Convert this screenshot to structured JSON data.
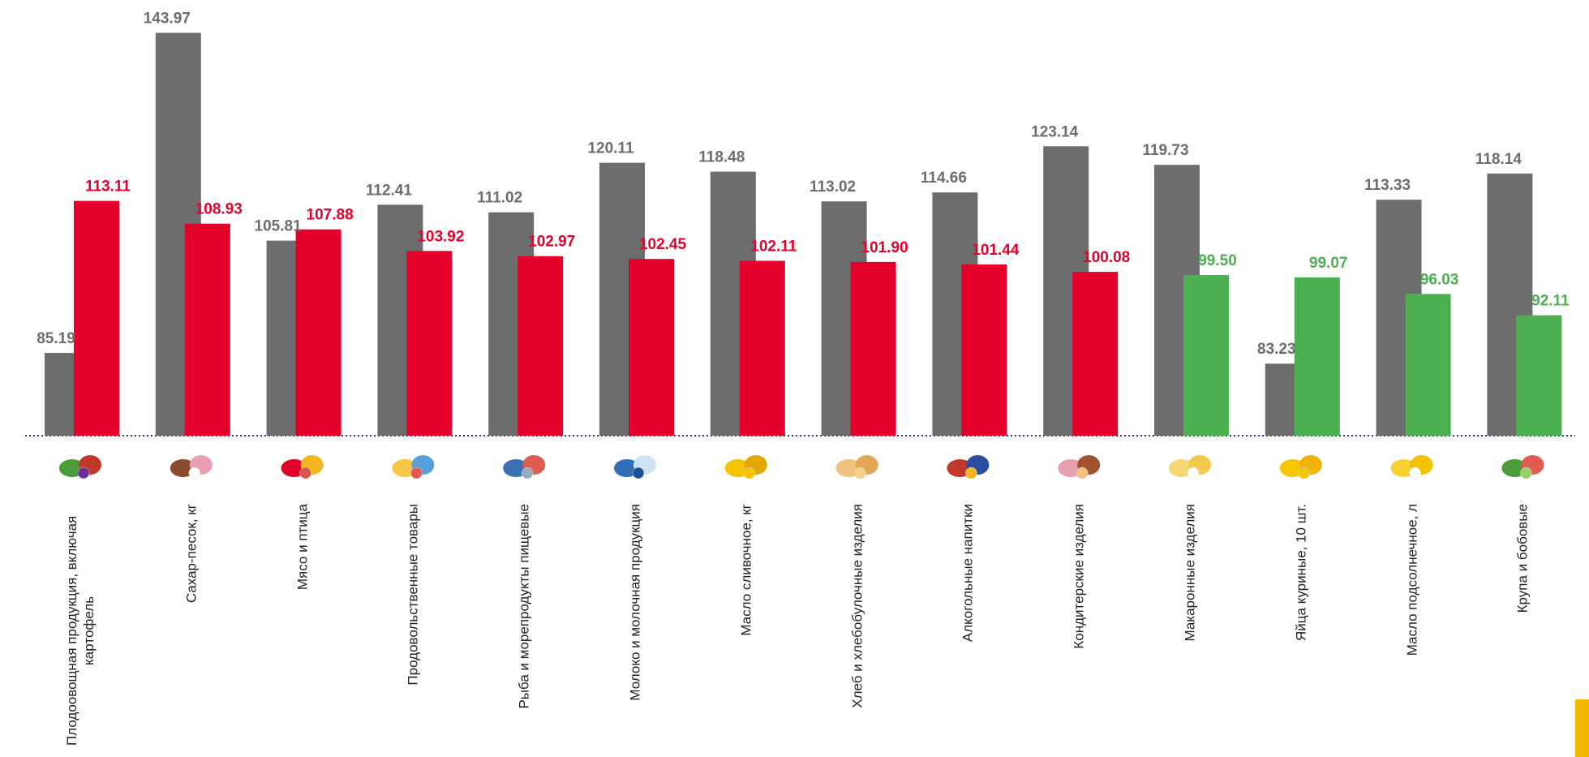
{
  "chart_data": {
    "type": "bar",
    "categories": [
      "Плодоовощная продукция, включая картофель",
      "Сахар-песок, кг",
      "Мясо и птица",
      "Продовольственные товары",
      "Рыба и морепродукты пищевые",
      "Молоко и молочная продукция",
      "Масло сливочное, кг",
      "Хлеб и хлебобулочные изделия",
      "Алкогольные напитки",
      "Кондитерские изделия",
      "Макаронные изделия",
      "Яйца куриные, 10 шт.",
      "Масло подсолнечное, л",
      "Крупа и бобовые"
    ],
    "series": [
      {
        "color": "#6d6d6d",
        "label_color": "#6d6d6d",
        "values": [
          85.19,
          143.97,
          105.81,
          112.41,
          111.02,
          120.11,
          118.48,
          113.02,
          114.66,
          123.14,
          119.73,
          83.23,
          113.33,
          118.14
        ],
        "value_labels": [
          "85.19",
          "143.97",
          "105.81",
          "112.41",
          "111.02",
          "120.11",
          "118.48",
          "113.02",
          "114.66",
          "123.14",
          "119.73",
          "83.23",
          "113.33",
          "118.14"
        ]
      },
      {
        "colors": [
          "#e4002b",
          "#e4002b",
          "#e4002b",
          "#e4002b",
          "#e4002b",
          "#e4002b",
          "#e4002b",
          "#e4002b",
          "#e4002b",
          "#e4002b",
          "#4caf50",
          "#4caf50",
          "#4caf50",
          "#4caf50"
        ],
        "values": [
          113.11,
          108.93,
          107.88,
          103.92,
          102.97,
          102.45,
          102.11,
          101.9,
          101.44,
          100.08,
          99.5,
          99.07,
          96.03,
          92.11
        ],
        "value_labels": [
          "113.11",
          "108.93",
          "107.88",
          "103.92",
          "102.97",
          "102.45",
          "102.11",
          "101.90",
          "101.44",
          "100.08",
          "99.50",
          "99.07",
          "96.03",
          "92.11"
        ]
      }
    ],
    "ylim": [
      70,
      150
    ]
  }
}
